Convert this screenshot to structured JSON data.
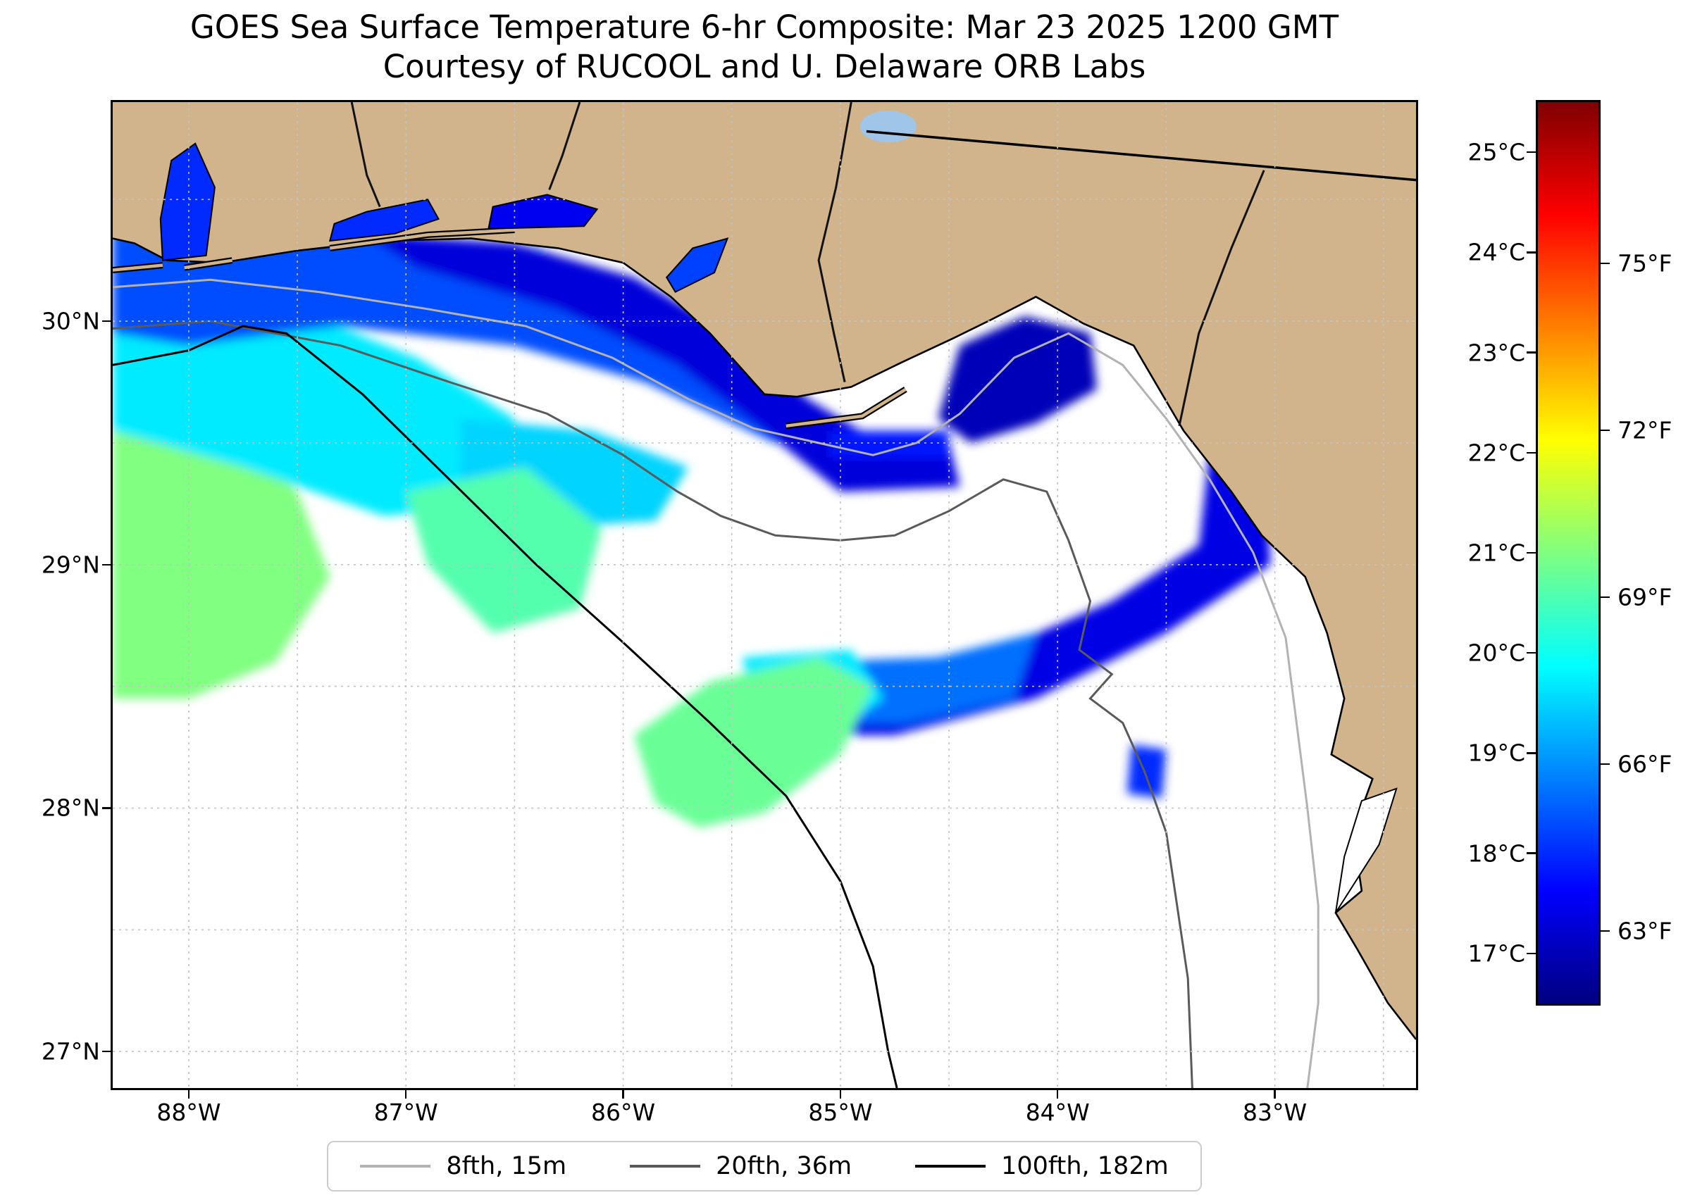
{
  "title": {
    "line1": "GOES Sea Surface Temperature 6-hr Composite: Mar 23 2025 1200 GMT",
    "line2": "Courtesy of RUCOOL and U. Delaware ORB Labs"
  },
  "axes": {
    "x_ticks": [
      {
        "label": "88°W",
        "lon": -88
      },
      {
        "label": "87°W",
        "lon": -87
      },
      {
        "label": "86°W",
        "lon": -86
      },
      {
        "label": "85°W",
        "lon": -85
      },
      {
        "label": "84°W",
        "lon": -84
      },
      {
        "label": "83°W",
        "lon": -83
      }
    ],
    "y_ticks": [
      {
        "label": "30°N",
        "lat": 30
      },
      {
        "label": "29°N",
        "lat": 29
      },
      {
        "label": "28°N",
        "lat": 28
      },
      {
        "label": "27°N",
        "lat": 27
      }
    ]
  },
  "colorbar": {
    "colormap": "jet",
    "celsius_ticks": [
      {
        "label": "25°C",
        "value_c": 25
      },
      {
        "label": "24°C",
        "value_c": 24
      },
      {
        "label": "23°C",
        "value_c": 23
      },
      {
        "label": "22°C",
        "value_c": 22
      },
      {
        "label": "21°C",
        "value_c": 21
      },
      {
        "label": "20°C",
        "value_c": 20
      },
      {
        "label": "19°C",
        "value_c": 19
      },
      {
        "label": "18°C",
        "value_c": 18
      },
      {
        "label": "17°C",
        "value_c": 17
      }
    ],
    "fahrenheit_ticks": [
      {
        "label": "75°F",
        "value_f": 75
      },
      {
        "label": "72°F",
        "value_f": 72
      },
      {
        "label": "69°F",
        "value_f": 69
      },
      {
        "label": "66°F",
        "value_f": 66
      },
      {
        "label": "63°F",
        "value_f": 63
      }
    ]
  },
  "legend": {
    "items": [
      {
        "label": "8fth, 15m",
        "color": "#b2b2b2"
      },
      {
        "label": "20fth, 36m",
        "color": "#5a5a5a"
      },
      {
        "label": "100fth, 182m",
        "color": "#000000"
      }
    ]
  },
  "colors": {
    "land": "#d2b48c",
    "ocean": "#ffffff",
    "grid": "#c3c3c3",
    "lake": "#9fc5e8",
    "frame": "#000000"
  },
  "chart_data": {
    "type": "heatmap",
    "title": "GOES Sea Surface Temperature 6-hr Composite: Mar 23 2025 1200 GMT",
    "subtitle": "Courtesy of RUCOOL and U. Delaware ORB Labs",
    "variable": "sea_surface_temperature",
    "units": [
      "°C",
      "°F"
    ],
    "colormap": "jet",
    "color_range_c": [
      16.5,
      25.5
    ],
    "extent": {
      "lon_min": -88.35,
      "lon_max": -82.35,
      "lat_min": 26.85,
      "lat_max": 30.9
    },
    "grid": true,
    "grid_step_deg": 0.5,
    "colorbar_position": "right",
    "legend_position": "bottom",
    "bathymetry_contours": [
      {
        "label": "8fth, 15m",
        "depth_fathoms": 8,
        "depth_m": 15,
        "color": "#b2b2b2",
        "path": [
          [
            -88.35,
            30.14
          ],
          [
            -87.9,
            30.17
          ],
          [
            -87.4,
            30.12
          ],
          [
            -86.9,
            30.05
          ],
          [
            -86.45,
            29.98
          ],
          [
            -86.05,
            29.85
          ],
          [
            -85.7,
            29.68
          ],
          [
            -85.4,
            29.56
          ],
          [
            -85.1,
            29.5
          ],
          [
            -84.85,
            29.45
          ],
          [
            -84.65,
            29.5
          ],
          [
            -84.45,
            29.62
          ],
          [
            -84.2,
            29.85
          ],
          [
            -83.95,
            29.95
          ],
          [
            -83.7,
            29.82
          ],
          [
            -83.5,
            29.6
          ],
          [
            -83.3,
            29.35
          ],
          [
            -83.1,
            29.05
          ],
          [
            -82.95,
            28.7
          ],
          [
            -82.9,
            28.35
          ],
          [
            -82.85,
            28.0
          ],
          [
            -82.8,
            27.6
          ],
          [
            -82.8,
            27.2
          ],
          [
            -82.85,
            26.85
          ]
        ]
      },
      {
        "label": "20fth, 36m",
        "depth_fathoms": 20,
        "depth_m": 36,
        "color": "#5a5a5a",
        "path": [
          [
            -88.35,
            29.97
          ],
          [
            -87.9,
            30.0
          ],
          [
            -87.3,
            29.9
          ],
          [
            -86.8,
            29.75
          ],
          [
            -86.35,
            29.62
          ],
          [
            -86.0,
            29.45
          ],
          [
            -85.75,
            29.3
          ],
          [
            -85.55,
            29.2
          ],
          [
            -85.3,
            29.12
          ],
          [
            -85.0,
            29.1
          ],
          [
            -84.75,
            29.12
          ],
          [
            -84.5,
            29.22
          ],
          [
            -84.25,
            29.35
          ],
          [
            -84.05,
            29.3
          ],
          [
            -83.95,
            29.1
          ],
          [
            -83.85,
            28.85
          ],
          [
            -83.9,
            28.65
          ],
          [
            -83.75,
            28.55
          ],
          [
            -83.85,
            28.45
          ],
          [
            -83.7,
            28.35
          ],
          [
            -83.6,
            28.15
          ],
          [
            -83.5,
            27.9
          ],
          [
            -83.45,
            27.6
          ],
          [
            -83.4,
            27.3
          ],
          [
            -83.38,
            26.85
          ]
        ]
      },
      {
        "label": "100fth, 182m",
        "depth_fathoms": 100,
        "depth_m": 182,
        "color": "#000000",
        "path": [
          [
            -88.35,
            29.82
          ],
          [
            -88.0,
            29.88
          ],
          [
            -87.75,
            29.98
          ],
          [
            -87.55,
            29.95
          ],
          [
            -87.2,
            29.7
          ],
          [
            -86.8,
            29.35
          ],
          [
            -86.4,
            29.0
          ],
          [
            -86.0,
            28.68
          ],
          [
            -85.6,
            28.35
          ],
          [
            -85.25,
            28.05
          ],
          [
            -85.0,
            27.7
          ],
          [
            -84.85,
            27.35
          ],
          [
            -84.78,
            27.0
          ],
          [
            -84.74,
            26.85
          ]
        ]
      }
    ],
    "sst_regions": [
      {
        "name": "west-shelf-green",
        "temp_c": 21.0,
        "polygon": [
          [
            -88.35,
            28.45
          ],
          [
            -88.35,
            29.75
          ],
          [
            -87.9,
            29.65
          ],
          [
            -87.5,
            29.3
          ],
          [
            -87.35,
            28.95
          ],
          [
            -87.6,
            28.6
          ],
          [
            -88.0,
            28.45
          ]
        ]
      },
      {
        "name": "west-shelf-cyan",
        "temp_c": 19.7,
        "polygon": [
          [
            -88.35,
            29.55
          ],
          [
            -88.35,
            30.15
          ],
          [
            -87.6,
            30.08
          ],
          [
            -86.95,
            29.85
          ],
          [
            -86.5,
            29.6
          ],
          [
            -86.55,
            29.25
          ],
          [
            -87.1,
            29.2
          ],
          [
            -87.75,
            29.4
          ]
        ]
      },
      {
        "name": "north-coast-blue",
        "temp_c": 18.3,
        "polygon": [
          [
            -88.35,
            29.95
          ],
          [
            -88.35,
            30.45
          ],
          [
            -87.7,
            30.42
          ],
          [
            -87.0,
            30.35
          ],
          [
            -86.4,
            30.3
          ],
          [
            -85.95,
            30.15
          ],
          [
            -85.55,
            29.95
          ],
          [
            -85.2,
            29.7
          ],
          [
            -84.95,
            29.55
          ],
          [
            -85.3,
            29.5
          ],
          [
            -85.9,
            29.75
          ],
          [
            -86.5,
            29.9
          ],
          [
            -87.3,
            29.98
          ],
          [
            -88.0,
            29.9
          ]
        ]
      },
      {
        "name": "panhandle-coast-darkblue",
        "temp_c": 17.3,
        "polygon": [
          [
            -87.2,
            30.36
          ],
          [
            -86.5,
            30.32
          ],
          [
            -85.95,
            30.18
          ],
          [
            -85.5,
            29.95
          ],
          [
            -85.15,
            29.68
          ],
          [
            -84.85,
            29.52
          ],
          [
            -84.5,
            29.5
          ],
          [
            -84.45,
            29.32
          ],
          [
            -85.0,
            29.3
          ],
          [
            -85.35,
            29.55
          ],
          [
            -85.75,
            29.82
          ],
          [
            -86.3,
            30.05
          ],
          [
            -86.95,
            30.22
          ]
        ]
      },
      {
        "name": "desoto-cyan-lobe",
        "temp_c": 19.5,
        "polygon": [
          [
            -86.75,
            29.6
          ],
          [
            -86.15,
            29.55
          ],
          [
            -85.7,
            29.4
          ],
          [
            -85.85,
            29.18
          ],
          [
            -86.4,
            29.15
          ],
          [
            -86.75,
            29.3
          ]
        ]
      },
      {
        "name": "central-green-lobe",
        "temp_c": 20.6,
        "polygon": [
          [
            -87.0,
            29.3
          ],
          [
            -86.45,
            29.4
          ],
          [
            -86.1,
            29.15
          ],
          [
            -86.2,
            28.82
          ],
          [
            -86.6,
            28.72
          ],
          [
            -86.9,
            29.0
          ]
        ]
      },
      {
        "name": "bigbend-darkblue",
        "temp_c": 17.0,
        "polygon": [
          [
            -84.55,
            29.6
          ],
          [
            -84.45,
            29.9
          ],
          [
            -84.15,
            30.02
          ],
          [
            -83.85,
            29.95
          ],
          [
            -83.82,
            29.72
          ],
          [
            -84.1,
            29.58
          ],
          [
            -84.4,
            29.5
          ]
        ]
      },
      {
        "name": "apalachee-blue-streak",
        "temp_c": 17.8,
        "polygon": [
          [
            -85.05,
            29.55
          ],
          [
            -84.5,
            29.55
          ],
          [
            -84.5,
            29.44
          ],
          [
            -85.05,
            29.44
          ]
        ]
      },
      {
        "name": "offshore-band-blue",
        "temp_c": 17.4,
        "polygon": [
          [
            -84.95,
            28.52
          ],
          [
            -84.35,
            28.62
          ],
          [
            -83.75,
            28.85
          ],
          [
            -83.35,
            29.08
          ],
          [
            -83.28,
            29.62
          ],
          [
            -83.05,
            29.55
          ],
          [
            -83.02,
            29.0
          ],
          [
            -83.5,
            28.72
          ],
          [
            -84.1,
            28.45
          ],
          [
            -84.75,
            28.3
          ],
          [
            -85.0,
            28.3
          ]
        ]
      },
      {
        "name": "offshore-band-mid",
        "temp_c": 18.6,
        "polygon": [
          [
            -85.15,
            28.6
          ],
          [
            -84.55,
            28.62
          ],
          [
            -84.1,
            28.72
          ],
          [
            -84.2,
            28.45
          ],
          [
            -84.7,
            28.35
          ],
          [
            -85.1,
            28.35
          ]
        ]
      },
      {
        "name": "offshore-band-cyan",
        "temp_c": 19.7,
        "polygon": [
          [
            -85.45,
            28.62
          ],
          [
            -84.95,
            28.65
          ],
          [
            -84.8,
            28.45
          ],
          [
            -85.05,
            28.3
          ],
          [
            -85.4,
            28.38
          ]
        ]
      },
      {
        "name": "south-green-patch",
        "temp_c": 20.8,
        "polygon": [
          [
            -85.85,
            28.02
          ],
          [
            -85.95,
            28.3
          ],
          [
            -85.6,
            28.52
          ],
          [
            -85.1,
            28.62
          ],
          [
            -84.85,
            28.5
          ],
          [
            -85.0,
            28.22
          ],
          [
            -85.35,
            27.98
          ],
          [
            -85.65,
            27.92
          ]
        ]
      },
      {
        "name": "small-blue-spot",
        "temp_c": 18.0,
        "polygon": [
          [
            -83.68,
            28.06
          ],
          [
            -83.66,
            28.26
          ],
          [
            -83.5,
            28.24
          ],
          [
            -83.52,
            28.04
          ]
        ]
      }
    ],
    "bays_with_data": [
      {
        "name": "mobile-bay",
        "temp_c": 18.0,
        "polygon": [
          [
            -88.12,
            30.25
          ],
          [
            -87.92,
            30.27
          ],
          [
            -87.88,
            30.55
          ],
          [
            -87.97,
            30.73
          ],
          [
            -88.08,
            30.66
          ],
          [
            -88.13,
            30.42
          ]
        ]
      },
      {
        "name": "pensacola-bay",
        "temp_c": 18.0,
        "polygon": [
          [
            -87.35,
            30.33
          ],
          [
            -87.05,
            30.36
          ],
          [
            -86.85,
            30.42
          ],
          [
            -86.9,
            30.5
          ],
          [
            -87.18,
            30.45
          ],
          [
            -87.33,
            30.4
          ]
        ]
      },
      {
        "name": "choctawhatchee-bay",
        "temp_c": 17.5,
        "polygon": [
          [
            -86.62,
            30.38
          ],
          [
            -86.18,
            30.39
          ],
          [
            -86.12,
            30.46
          ],
          [
            -86.35,
            30.52
          ],
          [
            -86.6,
            30.47
          ]
        ]
      },
      {
        "name": "st-andrew-bay",
        "temp_c": 18.2,
        "polygon": [
          [
            -85.76,
            30.12
          ],
          [
            -85.58,
            30.2
          ],
          [
            -85.52,
            30.34
          ],
          [
            -85.68,
            30.3
          ],
          [
            -85.8,
            30.18
          ]
        ]
      }
    ]
  }
}
